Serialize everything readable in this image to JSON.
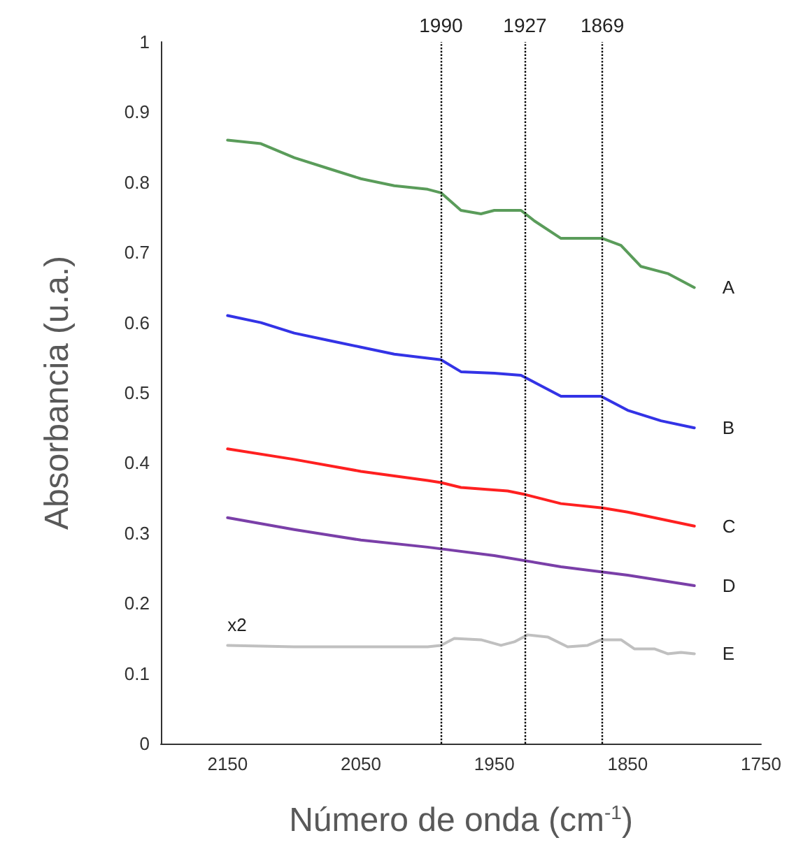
{
  "chart_data": {
    "type": "line",
    "xlabel": "Número de onda (cm$^{-1}$)",
    "ylabel": "Absorbancia (u.a.)",
    "xlim": [
      2200,
      1750
    ],
    "xticks": [
      2150,
      2050,
      1950,
      1850,
      1750
    ],
    "ylim": [
      0,
      1
    ],
    "yticks": [
      0,
      0.1,
      0.2,
      0.3,
      0.4,
      0.5,
      0.6,
      0.7,
      0.8,
      0.9,
      1
    ],
    "grid": false,
    "legend": false,
    "marker": "none",
    "line_style": "solid",
    "ref_lines": [
      {
        "axis": "x",
        "value": 1990,
        "label": "1990",
        "color": "#000000",
        "line_style": "dotted"
      },
      {
        "axis": "x",
        "value": 1927,
        "label": "1927",
        "color": "#000000",
        "line_style": "dotted"
      },
      {
        "axis": "x",
        "value": 1869,
        "label": "1869",
        "color": "#000000",
        "line_style": "dotted"
      }
    ],
    "annotations": [
      {
        "text": "x2",
        "x": 2150,
        "y": 0.14
      }
    ],
    "series": [
      {
        "name": "A",
        "color": "#5a9c5a",
        "x": [
          2150,
          2125,
          2100,
          2075,
          2050,
          2025,
          2000,
          1990,
          1975,
          1960,
          1950,
          1930,
          1920,
          1900,
          1880,
          1869,
          1855,
          1840,
          1820,
          1800
        ],
        "values": [
          0.86,
          0.855,
          0.835,
          0.82,
          0.805,
          0.795,
          0.79,
          0.785,
          0.76,
          0.755,
          0.76,
          0.76,
          0.745,
          0.72,
          0.72,
          0.72,
          0.71,
          0.68,
          0.67,
          0.65
        ]
      },
      {
        "name": "B",
        "color": "#3333e6",
        "x": [
          2150,
          2125,
          2100,
          2075,
          2050,
          2025,
          1990,
          1975,
          1950,
          1930,
          1910,
          1900,
          1870,
          1850,
          1825,
          1800
        ],
        "values": [
          0.61,
          0.6,
          0.585,
          0.575,
          0.565,
          0.555,
          0.547,
          0.53,
          0.528,
          0.525,
          0.505,
          0.495,
          0.495,
          0.475,
          0.46,
          0.45
        ]
      },
      {
        "name": "C",
        "color": "#ff2020",
        "x": [
          2150,
          2100,
          2050,
          2000,
          1990,
          1975,
          1940,
          1927,
          1900,
          1869,
          1850,
          1800
        ],
        "values": [
          0.42,
          0.405,
          0.388,
          0.375,
          0.372,
          0.365,
          0.36,
          0.355,
          0.342,
          0.336,
          0.33,
          0.31
        ]
      },
      {
        "name": "D",
        "color": "#7a3fa8",
        "x": [
          2150,
          2100,
          2050,
          2000,
          1950,
          1900,
          1850,
          1800
        ],
        "values": [
          0.322,
          0.305,
          0.29,
          0.28,
          0.268,
          0.252,
          0.24,
          0.225
        ]
      },
      {
        "name": "E",
        "color": "#c0c0c0",
        "x": [
          2150,
          2100,
          2050,
          2000,
          1990,
          1980,
          1960,
          1945,
          1935,
          1925,
          1910,
          1895,
          1880,
          1870,
          1855,
          1845,
          1830,
          1820,
          1810,
          1800
        ],
        "values": [
          0.14,
          0.138,
          0.138,
          0.138,
          0.14,
          0.15,
          0.148,
          0.14,
          0.145,
          0.155,
          0.152,
          0.138,
          0.14,
          0.148,
          0.148,
          0.135,
          0.135,
          0.128,
          0.13,
          0.128
        ]
      }
    ]
  }
}
